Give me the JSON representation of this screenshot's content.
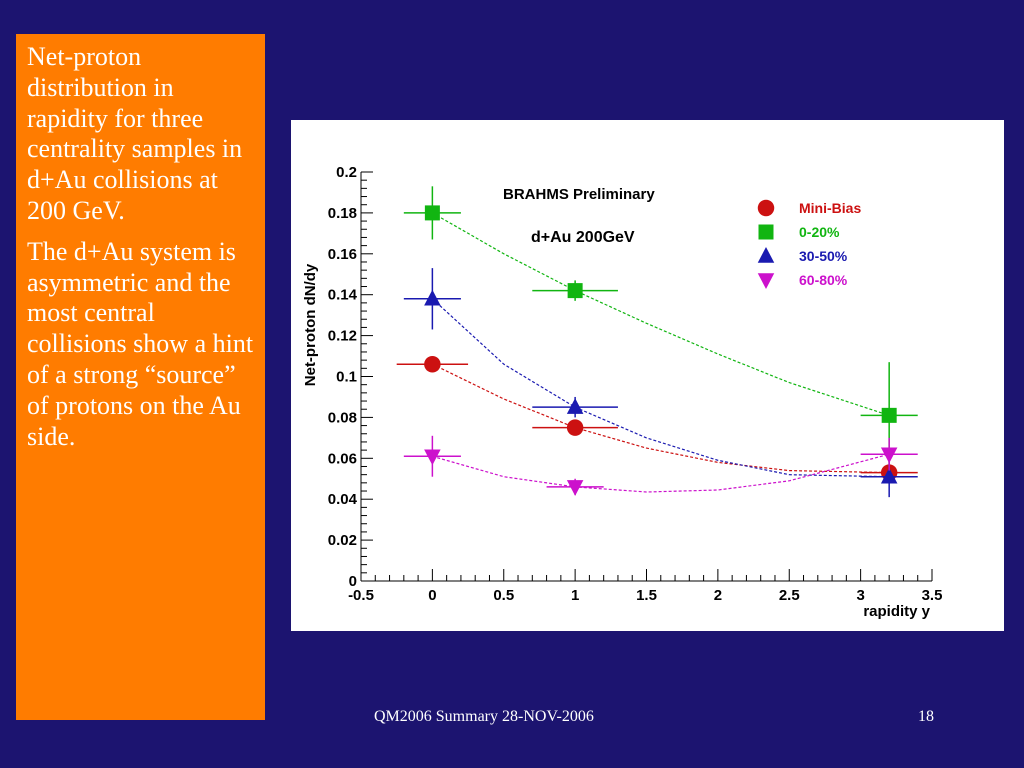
{
  "side_text": {
    "paragraph_1": "Net-proton distribution in rapidity for three centrality samples in d+Au collisions at 200 GeV.",
    "paragraph_2": "The d+Au system is asymmetric and the most central collisions show a hint of a strong “source” of protons on the Au side."
  },
  "footer": {
    "left": "QM2006 Summary 28-NOV-2006",
    "page_number": "18"
  },
  "chart_data": {
    "type": "scatter",
    "title": "BRAHMS Preliminary",
    "subtitle": "d+Au 200GeV",
    "xlabel": "rapidity y",
    "ylabel": "Net-proton dN/dy",
    "xlim": [
      -0.5,
      3.5
    ],
    "ylim": [
      0,
      0.2
    ],
    "xticks": [
      -0.5,
      0,
      0.5,
      1,
      1.5,
      2,
      2.5,
      3,
      3.5
    ],
    "xtick_labels": [
      "-0.5",
      "0",
      "0.5",
      "1",
      "1.5",
      "2",
      "2.5",
      "3",
      "3.5"
    ],
    "yticks": [
      0,
      0.02,
      0.04,
      0.06,
      0.08,
      0.1,
      0.12,
      0.14,
      0.16,
      0.18,
      0.2
    ],
    "ytick_labels": [
      "0",
      "0.02",
      "0.04",
      "0.06",
      "0.08",
      "0.1",
      "0.12",
      "0.14",
      "0.16",
      "0.18",
      "0.2"
    ],
    "legend_position": "top-right",
    "grid": false,
    "series": [
      {
        "name": "Mini-Bias",
        "color": "#cc1111",
        "marker": "circle",
        "points": [
          {
            "x": 0,
            "y": 0.106,
            "xerr": 0.25,
            "yerr": 0.003
          },
          {
            "x": 1,
            "y": 0.075,
            "xerr": 0.3,
            "yerr": 0.002
          },
          {
            "x": 3.2,
            "y": 0.053,
            "xerr": 0.2,
            "yerr": 0.004
          }
        ],
        "fit": [
          [
            0,
            0.106
          ],
          [
            0.5,
            0.089
          ],
          [
            1,
            0.075
          ],
          [
            1.5,
            0.065
          ],
          [
            2,
            0.058
          ],
          [
            2.5,
            0.054
          ],
          [
            3.2,
            0.053
          ]
        ]
      },
      {
        "name": "0-20%",
        "color": "#11b511",
        "marker": "square",
        "points": [
          {
            "x": 0,
            "y": 0.18,
            "xerr": 0.2,
            "yerr": 0.013
          },
          {
            "x": 1,
            "y": 0.142,
            "xerr": 0.3,
            "yerr": 0.005
          },
          {
            "x": 3.2,
            "y": 0.081,
            "xerr": 0.2,
            "yerr": 0.026
          }
        ],
        "fit": [
          [
            0,
            0.18
          ],
          [
            0.5,
            0.16
          ],
          [
            1,
            0.142
          ],
          [
            1.5,
            0.126
          ],
          [
            2,
            0.111
          ],
          [
            2.5,
            0.097
          ],
          [
            3.2,
            0.081
          ]
        ]
      },
      {
        "name": "30-50%",
        "color": "#1a1ab0",
        "marker": "triangle-up",
        "points": [
          {
            "x": 0,
            "y": 0.138,
            "xerr": 0.2,
            "yerr": 0.015
          },
          {
            "x": 1,
            "y": 0.085,
            "xerr": 0.3,
            "yerr": 0.005
          },
          {
            "x": 3.2,
            "y": 0.051,
            "xerr": 0.2,
            "yerr": 0.01
          }
        ],
        "fit": [
          [
            0,
            0.138
          ],
          [
            0.5,
            0.106
          ],
          [
            1,
            0.085
          ],
          [
            1.5,
            0.07
          ],
          [
            2,
            0.059
          ],
          [
            2.5,
            0.052
          ],
          [
            3.2,
            0.051
          ]
        ]
      },
      {
        "name": "60-80%",
        "color": "#cc11cc",
        "marker": "triangle-down",
        "points": [
          {
            "x": 0,
            "y": 0.061,
            "xerr": 0.2,
            "yerr": 0.01
          },
          {
            "x": 1,
            "y": 0.046,
            "xerr": 0.2,
            "yerr": 0.004
          },
          {
            "x": 3.2,
            "y": 0.062,
            "xerr": 0.2,
            "yerr": 0.008
          }
        ],
        "fit": [
          [
            0,
            0.061
          ],
          [
            0.5,
            0.051
          ],
          [
            1,
            0.046
          ],
          [
            1.5,
            0.0435
          ],
          [
            2,
            0.0445
          ],
          [
            2.5,
            0.049
          ],
          [
            3.2,
            0.062
          ]
        ]
      }
    ]
  }
}
